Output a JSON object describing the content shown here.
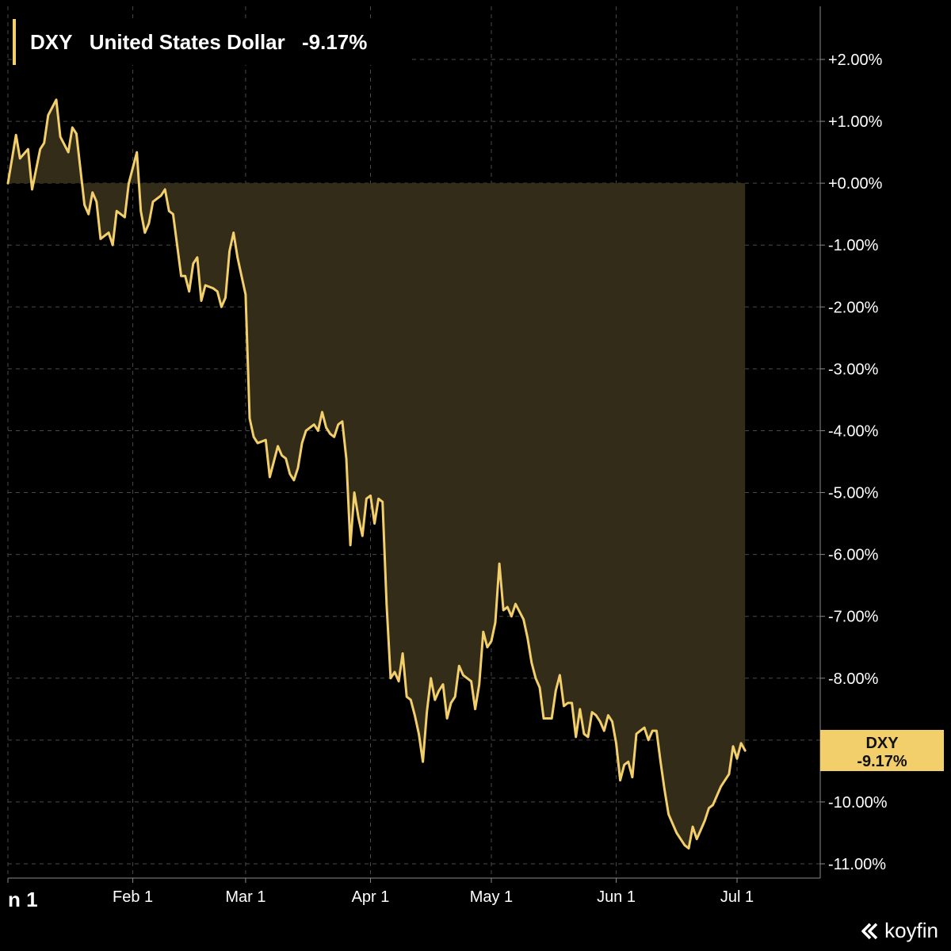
{
  "legend": {
    "ticker": "DXY",
    "name": "United States Dollar",
    "change": "-9.17%"
  },
  "badge": {
    "ticker": "DXY",
    "value": "-9.17%"
  },
  "brand": {
    "name": "koyfin"
  },
  "colors": {
    "background": "#000000",
    "line": "#f2cf6b",
    "fill": "#332c18",
    "badge": "#f2cf6b",
    "grid": "#4a4a4a"
  },
  "chart_data": {
    "type": "area",
    "title": "DXY United States Dollar -9.17%",
    "xlabel": "",
    "ylabel": "",
    "x_tick_labels": [
      "n 1",
      "Feb 1",
      "Mar 1",
      "Apr 1",
      "May 1",
      "Jun 1",
      "Jul 1"
    ],
    "x_tick_days": [
      0,
      31,
      59,
      90,
      120,
      151,
      181
    ],
    "y_ticks": [
      2,
      1,
      0,
      -1,
      -2,
      -3,
      -4,
      -5,
      -6,
      -7,
      -8,
      -9,
      -10,
      -11
    ],
    "y_tick_labels": [
      "+2.00%",
      "+1.00%",
      "+0.00%",
      "-1.00%",
      "-2.00%",
      "-3.00%",
      "-4.00%",
      "-5.00%",
      "-6.00%",
      "-7.00%",
      "-8.00%",
      "-9.00%",
      "-10.00%",
      "-11.00%"
    ],
    "ylim": [
      -11.3,
      2.95
    ],
    "baseline": 0,
    "grid": true,
    "legend_position": "top-left",
    "last_value": -9.17,
    "series": [
      {
        "name": "DXY",
        "points": [
          [
            0,
            0.0
          ],
          [
            2,
            0.78
          ],
          [
            3,
            0.4
          ],
          [
            5,
            0.55
          ],
          [
            6,
            -0.1
          ],
          [
            8,
            0.55
          ],
          [
            9,
            0.65
          ],
          [
            10,
            1.1
          ],
          [
            12,
            1.35
          ],
          [
            13,
            0.75
          ],
          [
            15,
            0.5
          ],
          [
            16,
            0.9
          ],
          [
            17,
            0.8
          ],
          [
            19,
            -0.35
          ],
          [
            20,
            -0.5
          ],
          [
            21,
            -0.15
          ],
          [
            22,
            -0.3
          ],
          [
            23,
            -0.9
          ],
          [
            25,
            -0.8
          ],
          [
            26,
            -1.0
          ],
          [
            27,
            -0.45
          ],
          [
            28,
            -0.5
          ],
          [
            29,
            -0.55
          ],
          [
            30,
            0.0
          ],
          [
            32,
            0.5
          ],
          [
            33,
            -0.45
          ],
          [
            34,
            -0.8
          ],
          [
            35,
            -0.65
          ],
          [
            36,
            -0.3
          ],
          [
            38,
            -0.2
          ],
          [
            39,
            -0.1
          ],
          [
            40,
            -0.45
          ],
          [
            41,
            -0.5
          ],
          [
            42,
            -1.0
          ],
          [
            43,
            -1.5
          ],
          [
            44,
            -1.5
          ],
          [
            45,
            -1.75
          ],
          [
            46,
            -1.3
          ],
          [
            47,
            -1.2
          ],
          [
            48,
            -1.9
          ],
          [
            49,
            -1.65
          ],
          [
            51,
            -1.7
          ],
          [
            52,
            -1.75
          ],
          [
            53,
            -2.0
          ],
          [
            54,
            -1.85
          ],
          [
            55,
            -1.1
          ],
          [
            56,
            -0.8
          ],
          [
            57,
            -1.2
          ],
          [
            58,
            -1.5
          ],
          [
            59,
            -1.8
          ],
          [
            60,
            -3.8
          ],
          [
            61,
            -4.1
          ],
          [
            62,
            -4.2
          ],
          [
            64,
            -4.15
          ],
          [
            65,
            -4.75
          ],
          [
            66,
            -4.5
          ],
          [
            67,
            -4.25
          ],
          [
            68,
            -4.4
          ],
          [
            69,
            -4.45
          ],
          [
            70,
            -4.7
          ],
          [
            71,
            -4.8
          ],
          [
            72,
            -4.6
          ],
          [
            73,
            -4.2
          ],
          [
            74,
            -4.0
          ],
          [
            76,
            -3.9
          ],
          [
            77,
            -4.0
          ],
          [
            78,
            -3.7
          ],
          [
            79,
            -3.95
          ],
          [
            80,
            -4.05
          ],
          [
            81,
            -4.1
          ],
          [
            82,
            -3.9
          ],
          [
            83,
            -3.85
          ],
          [
            84,
            -4.45
          ],
          [
            85,
            -5.85
          ],
          [
            86,
            -5.0
          ],
          [
            87,
            -5.4
          ],
          [
            88,
            -5.7
          ],
          [
            89,
            -5.1
          ],
          [
            90,
            -5.05
          ],
          [
            91,
            -5.5
          ],
          [
            92,
            -5.1
          ],
          [
            93,
            -5.15
          ],
          [
            94,
            -6.8
          ],
          [
            95,
            -8.0
          ],
          [
            96,
            -7.9
          ],
          [
            97,
            -8.05
          ],
          [
            98,
            -7.6
          ],
          [
            99,
            -8.3
          ],
          [
            100,
            -8.35
          ],
          [
            101,
            -8.6
          ],
          [
            102,
            -8.9
          ],
          [
            103,
            -9.35
          ],
          [
            104,
            -8.55
          ],
          [
            105,
            -8.0
          ],
          [
            106,
            -8.35
          ],
          [
            107,
            -8.2
          ],
          [
            108,
            -8.1
          ],
          [
            109,
            -8.65
          ],
          [
            110,
            -8.4
          ],
          [
            111,
            -8.3
          ],
          [
            112,
            -7.8
          ],
          [
            113,
            -7.95
          ],
          [
            114,
            -8.0
          ],
          [
            115,
            -8.05
          ],
          [
            116,
            -8.5
          ],
          [
            117,
            -8.1
          ],
          [
            118,
            -7.25
          ],
          [
            119,
            -7.5
          ],
          [
            120,
            -7.4
          ],
          [
            121,
            -7.1
          ],
          [
            122,
            -6.15
          ],
          [
            123,
            -6.9
          ],
          [
            124,
            -6.85
          ],
          [
            125,
            -7.0
          ],
          [
            126,
            -6.8
          ],
          [
            128,
            -7.05
          ],
          [
            129,
            -7.35
          ],
          [
            130,
            -7.75
          ],
          [
            131,
            -8.0
          ],
          [
            132,
            -8.15
          ],
          [
            133,
            -8.65
          ],
          [
            135,
            -8.65
          ],
          [
            136,
            -8.2
          ],
          [
            137,
            -7.95
          ],
          [
            138,
            -8.45
          ],
          [
            139,
            -8.4
          ],
          [
            140,
            -8.4
          ],
          [
            141,
            -8.95
          ],
          [
            142,
            -8.5
          ],
          [
            143,
            -8.9
          ],
          [
            144,
            -8.95
          ],
          [
            145,
            -8.55
          ],
          [
            146,
            -8.6
          ],
          [
            147,
            -8.7
          ],
          [
            148,
            -8.85
          ],
          [
            149,
            -8.6
          ],
          [
            150,
            -8.7
          ],
          [
            151,
            -9.05
          ],
          [
            152,
            -9.65
          ],
          [
            153,
            -9.4
          ],
          [
            154,
            -9.35
          ],
          [
            155,
            -9.6
          ],
          [
            156,
            -8.9
          ],
          [
            157,
            -8.85
          ],
          [
            158,
            -8.8
          ],
          [
            159,
            -9.0
          ],
          [
            160,
            -8.85
          ],
          [
            161,
            -8.85
          ],
          [
            162,
            -9.35
          ],
          [
            163,
            -9.8
          ],
          [
            164,
            -10.2
          ],
          [
            165,
            -10.35
          ],
          [
            166,
            -10.5
          ],
          [
            167,
            -10.6
          ],
          [
            168,
            -10.7
          ],
          [
            169,
            -10.75
          ],
          [
            170,
            -10.4
          ],
          [
            171,
            -10.6
          ],
          [
            172,
            -10.45
          ],
          [
            173,
            -10.3
          ],
          [
            174,
            -10.1
          ],
          [
            175,
            -10.05
          ],
          [
            176,
            -9.9
          ],
          [
            177,
            -9.75
          ],
          [
            178,
            -9.65
          ],
          [
            179,
            -9.55
          ],
          [
            180,
            -9.1
          ],
          [
            181,
            -9.3
          ],
          [
            182,
            -9.05
          ],
          [
            183,
            -9.17
          ]
        ]
      }
    ]
  }
}
